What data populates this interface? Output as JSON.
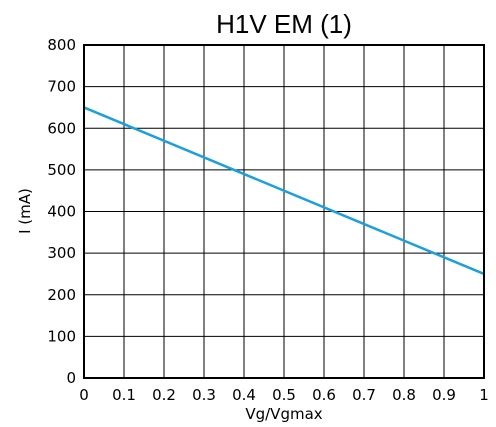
{
  "chart_data": {
    "type": "line",
    "title": "H1V EM (1)",
    "xlabel": "Vg/Vgmax",
    "ylabel": "I  (mA)",
    "xlim": [
      0,
      1
    ],
    "ylim": [
      0,
      800
    ],
    "grid": true,
    "x_ticks": [
      0,
      0.1,
      0.2,
      0.3,
      0.4,
      0.5,
      0.6,
      0.7,
      0.8,
      0.9,
      1
    ],
    "x_tick_labels": [
      "0",
      "0.1",
      "0.2",
      "0.3",
      "0.4",
      "0.5",
      "0.6",
      "0.7",
      "0.8",
      "0.9",
      "1"
    ],
    "y_ticks": [
      0,
      100,
      200,
      300,
      400,
      500,
      600,
      700,
      800
    ],
    "y_tick_labels": [
      "0",
      "100",
      "200",
      "300",
      "400",
      "500",
      "600",
      "700",
      "800"
    ],
    "series": [
      {
        "color": "#1aa0dc",
        "x": [
          0,
          1
        ],
        "y": [
          650,
          250
        ]
      }
    ]
  }
}
